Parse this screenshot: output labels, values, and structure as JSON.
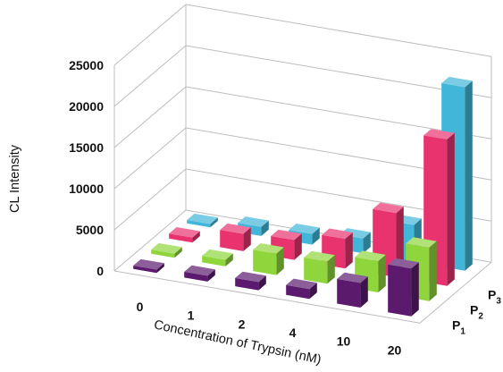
{
  "chart_data": {
    "type": "bar",
    "subtype": "3d-column",
    "title": "",
    "xlabel": "Concentration of Trypsin (nM)",
    "ylabel": "CL Intensity",
    "ylim": [
      0,
      25000
    ],
    "yticks": [
      0,
      5000,
      10000,
      15000,
      20000,
      25000
    ],
    "categories": [
      "0",
      "1",
      "2",
      "4",
      "10",
      "20"
    ],
    "depth_labels": [
      {
        "base": "P",
        "sub": "1"
      },
      {
        "base": "P",
        "sub": "2"
      },
      {
        "base": "P",
        "sub": "3"
      },
      {
        "base": "P",
        "sub": ""
      }
    ],
    "grid": true,
    "series": [
      {
        "label_index": 0,
        "color": "#5b1a6e",
        "values": [
          400,
          700,
          1000,
          1200,
          3000,
          5800
        ]
      },
      {
        "label_index": 1,
        "color": "#8fd63c",
        "values": [
          500,
          800,
          2600,
          2700,
          3800,
          6500
        ]
      },
      {
        "label_index": 2,
        "color": "#e8336e",
        "values": [
          600,
          2100,
          2400,
          3600,
          7800,
          17800
        ]
      },
      {
        "label_index": 3,
        "color": "#41b6d9",
        "values": [
          400,
          1100,
          1300,
          1800,
          4500,
          22300
        ]
      }
    ]
  }
}
